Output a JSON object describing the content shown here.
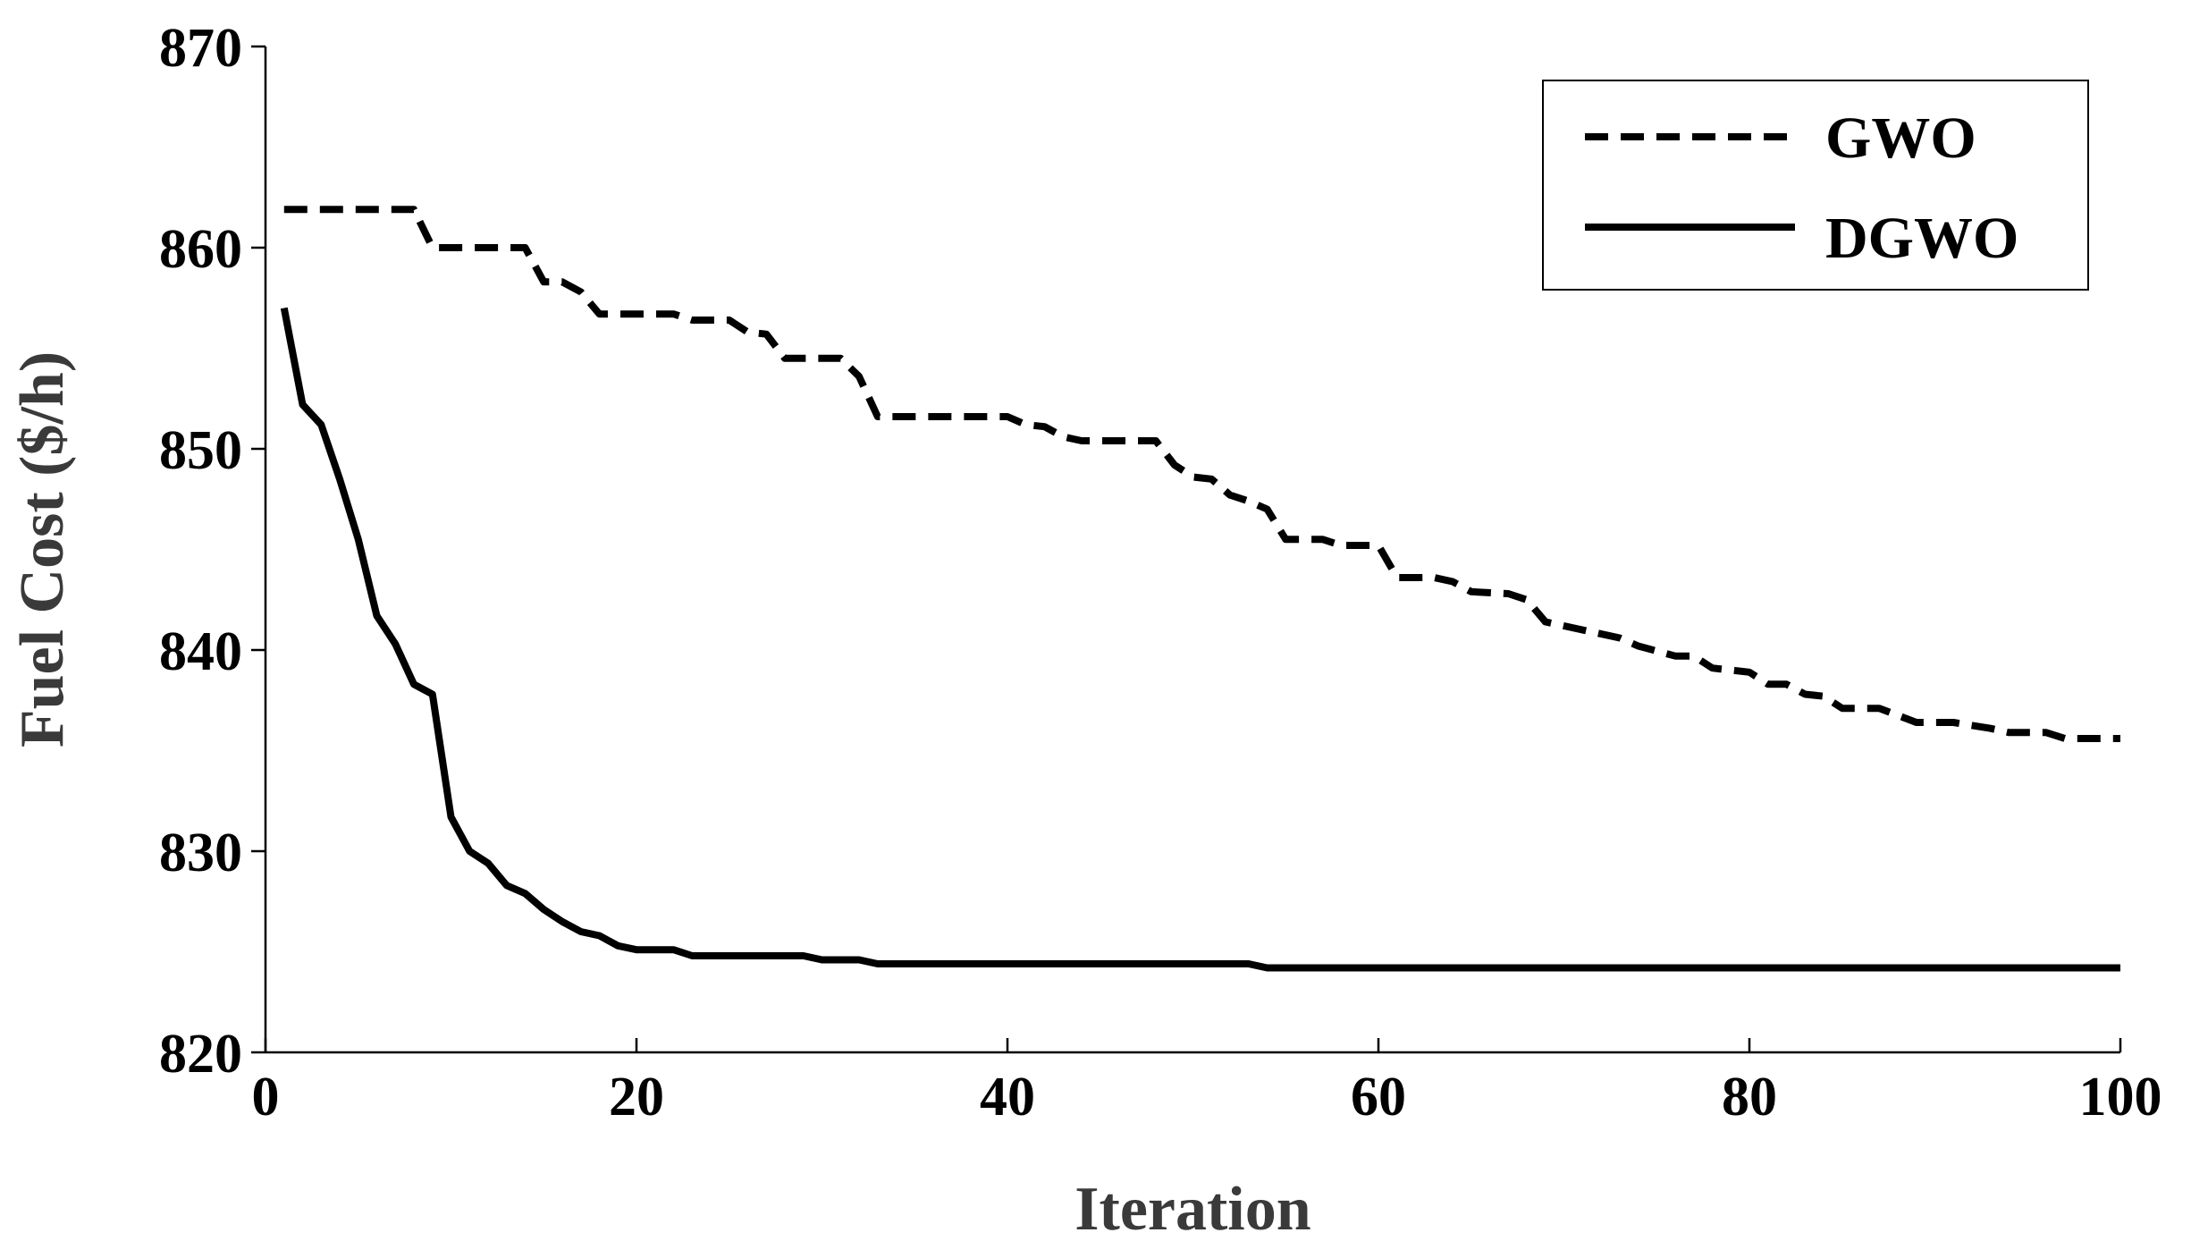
{
  "chart_data": {
    "type": "line",
    "title": "",
    "xlabel": "Iteration",
    "ylabel": "Fuel Cost ($/h)",
    "xlim": [
      0,
      100
    ],
    "ylim": [
      820,
      870
    ],
    "xticks": [
      0,
      20,
      40,
      60,
      80,
      100
    ],
    "yticks": [
      820,
      830,
      840,
      850,
      860,
      870
    ],
    "xtick_labels": [
      "0",
      "20",
      "40",
      "60",
      "80",
      "100"
    ],
    "ytick_labels": [
      "820",
      "830",
      "840",
      "850",
      "860",
      "870"
    ],
    "grid": false,
    "legend_position": "top-right",
    "series": [
      {
        "name": "GWO",
        "style": "dashed",
        "color": "#000000",
        "points": [
          [
            1,
            861.9
          ],
          [
            8,
            861.9
          ],
          [
            9,
            860.0
          ],
          [
            14,
            860.0
          ],
          [
            15,
            858.3
          ],
          [
            16,
            858.3
          ],
          [
            17,
            857.8
          ],
          [
            18,
            856.7
          ],
          [
            22,
            856.7
          ],
          [
            23,
            856.4
          ],
          [
            25,
            856.4
          ],
          [
            26,
            855.8
          ],
          [
            27,
            855.7
          ],
          [
            28,
            854.5
          ],
          [
            31,
            854.5
          ],
          [
            32,
            853.6
          ],
          [
            33,
            851.6
          ],
          [
            40,
            851.6
          ],
          [
            41,
            851.2
          ],
          [
            42,
            851.1
          ],
          [
            43,
            850.6
          ],
          [
            44,
            850.4
          ],
          [
            48,
            850.4
          ],
          [
            49,
            849.2
          ],
          [
            50,
            848.6
          ],
          [
            51,
            848.5
          ],
          [
            52,
            847.7
          ],
          [
            53,
            847.4
          ],
          [
            54,
            847.0
          ],
          [
            55,
            845.5
          ],
          [
            57,
            845.5
          ],
          [
            58,
            845.2
          ],
          [
            60,
            845.2
          ],
          [
            61,
            843.6
          ],
          [
            63,
            843.6
          ],
          [
            64,
            843.4
          ],
          [
            65,
            842.9
          ],
          [
            67,
            842.8
          ],
          [
            68,
            842.5
          ],
          [
            69,
            841.4
          ],
          [
            70,
            841.2
          ],
          [
            73,
            840.6
          ],
          [
            74,
            840.2
          ],
          [
            76,
            839.7
          ],
          [
            77,
            839.7
          ],
          [
            78,
            839.1
          ],
          [
            80,
            838.9
          ],
          [
            81,
            838.3
          ],
          [
            82,
            838.3
          ],
          [
            83,
            837.8
          ],
          [
            84,
            837.7
          ],
          [
            85,
            837.1
          ],
          [
            87,
            837.1
          ],
          [
            89,
            836.4
          ],
          [
            91,
            836.4
          ],
          [
            93,
            836.1
          ],
          [
            94,
            835.9
          ],
          [
            96,
            835.9
          ],
          [
            97,
            835.6
          ],
          [
            100,
            835.6
          ]
        ]
      },
      {
        "name": "DGWO",
        "style": "solid",
        "color": "#000000",
        "points": [
          [
            1,
            857.0
          ],
          [
            2,
            852.2
          ],
          [
            3,
            851.2
          ],
          [
            4,
            848.5
          ],
          [
            5,
            845.5
          ],
          [
            6,
            841.7
          ],
          [
            7,
            840.3
          ],
          [
            8,
            838.3
          ],
          [
            9,
            837.8
          ],
          [
            10,
            831.7
          ],
          [
            11,
            830.0
          ],
          [
            12,
            829.4
          ],
          [
            13,
            828.3
          ],
          [
            14,
            827.9
          ],
          [
            15,
            827.1
          ],
          [
            16,
            826.5
          ],
          [
            17,
            826.0
          ],
          [
            18,
            825.8
          ],
          [
            19,
            825.3
          ],
          [
            20,
            825.1
          ],
          [
            22,
            825.1
          ],
          [
            23,
            824.8
          ],
          [
            29,
            824.8
          ],
          [
            30,
            824.6
          ],
          [
            32,
            824.6
          ],
          [
            33,
            824.4
          ],
          [
            53,
            824.4
          ],
          [
            54,
            824.2
          ],
          [
            100,
            824.2
          ]
        ]
      }
    ]
  }
}
